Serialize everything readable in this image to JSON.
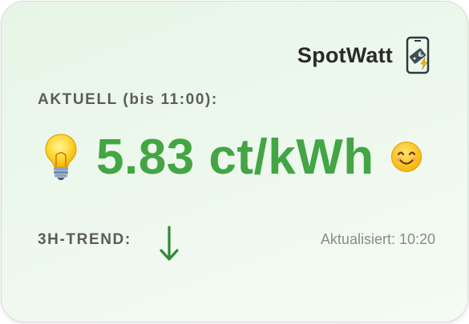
{
  "app": {
    "name": "SpotWatt",
    "logo_icon": "phone-euro-bolt-icon"
  },
  "current": {
    "label": "AKTUELL (bis 11:00):",
    "price": "5.83 ct/kWh",
    "price_color": "#43a544",
    "lead_icon": "lightbulb-icon",
    "mood_icon": "smiling-face-icon"
  },
  "trend": {
    "label": "3H-TREND:",
    "direction_icon": "arrow-down-icon",
    "arrow_color": "#2e8b35"
  },
  "status": {
    "updated": "Aktualisiert: 10:20"
  }
}
